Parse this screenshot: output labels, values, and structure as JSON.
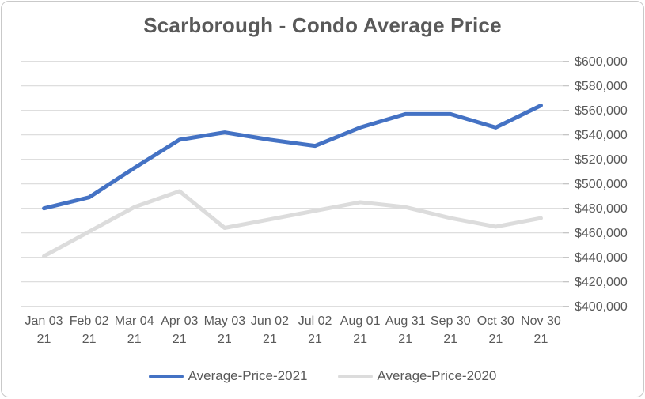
{
  "chart_data": {
    "type": "line",
    "title": "Scarborough - Condo Average Price",
    "xlabel": "",
    "ylabel": "",
    "ylim": [
      400000,
      600000
    ],
    "ytick_step": 20000,
    "grid": true,
    "axis_side": "right",
    "legend_position": "bottom",
    "y_tick_labels": [
      "$600,000",
      "$580,000",
      "$560,000",
      "$540,000",
      "$520,000",
      "$500,000",
      "$480,000",
      "$460,000",
      "$440,000",
      "$420,000",
      "$400,000"
    ],
    "categories": [
      {
        "line1": "Jan 03",
        "line2": "21"
      },
      {
        "line1": "Feb 02",
        "line2": "21"
      },
      {
        "line1": "Mar 04",
        "line2": "21"
      },
      {
        "line1": "Apr 03",
        "line2": "21"
      },
      {
        "line1": "May 03",
        "line2": "21"
      },
      {
        "line1": "Jun 02",
        "line2": "21"
      },
      {
        "line1": "Jul 02",
        "line2": "21"
      },
      {
        "line1": "Aug 01",
        "line2": "21"
      },
      {
        "line1": "Aug 31",
        "line2": "21"
      },
      {
        "line1": "Sep 30",
        "line2": "21"
      },
      {
        "line1": "Oct 30",
        "line2": "21"
      },
      {
        "line1": "Nov 30",
        "line2": "21"
      }
    ],
    "series": [
      {
        "name": "Average-Price-2021",
        "color": "#4472c4",
        "values": [
          480000,
          489000,
          513000,
          536000,
          542000,
          536000,
          531000,
          546000,
          557000,
          557000,
          546000,
          564000
        ]
      },
      {
        "name": "Average-Price-2020",
        "color": "#dcdcdc",
        "values": [
          441000,
          461000,
          481000,
          494000,
          464000,
          471000,
          478000,
          485000,
          481000,
          472000,
          465000,
          472000
        ]
      }
    ],
    "colors": {
      "gridline": "#d9d9d9",
      "tick_mark": "#bfbfbf",
      "axis_text": "#595959",
      "title_text": "#595959",
      "frame_border": "#c9c9c9"
    }
  }
}
